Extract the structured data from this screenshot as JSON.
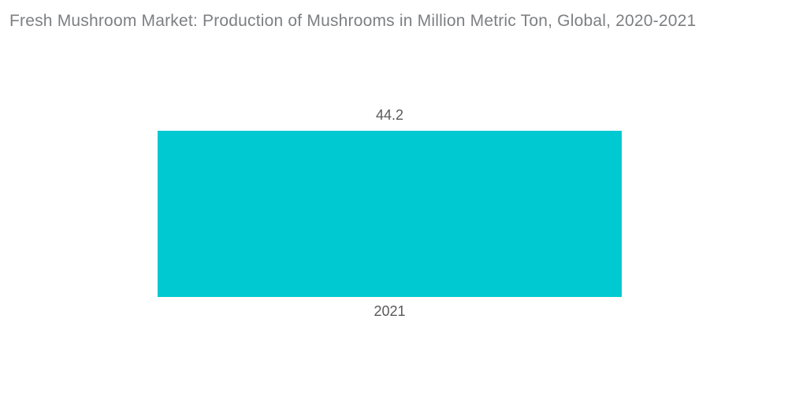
{
  "header": {
    "title": "Fresh Mushroom Market: Production of Mushrooms in Million Metric Ton, Global, 2020-2021"
  },
  "colors": {
    "bar": "#00c9d1",
    "title_text": "#7d7f82",
    "label_text": "#58595b",
    "background": "#ffffff"
  },
  "chart_data": {
    "type": "bar",
    "title": "Fresh Mushroom Market: Production of Mushrooms in Million Metric Ton, Global, 2020-2021",
    "categories": [
      "2021"
    ],
    "values": [
      44.2
    ],
    "data_labels": [
      "44.2"
    ],
    "xlabel": "",
    "ylabel": "",
    "ylim": [
      0,
      44.2
    ],
    "grid": false,
    "axes_visible": false,
    "legend_position": "none",
    "orientation": "vertical",
    "bar_color": "#00c9d1"
  }
}
